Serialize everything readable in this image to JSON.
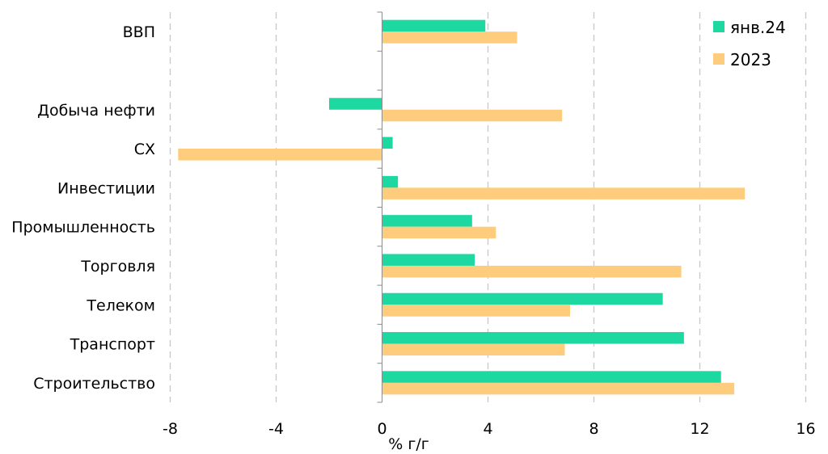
{
  "chart_data": {
    "type": "bar",
    "orientation": "horizontal",
    "categories": [
      "ВВП",
      "",
      "Добыча нефти",
      "СХ",
      "Инвестиции",
      "Промышленность",
      "Торговля",
      "Телеком",
      "Транспорт",
      "Строительство"
    ],
    "series": [
      {
        "name": "янв.24",
        "color": "#1dd8a0",
        "values": [
          3.9,
          null,
          -2.0,
          0.4,
          0.6,
          3.4,
          3.5,
          10.6,
          11.4,
          12.8
        ]
      },
      {
        "name": "2023",
        "color": "#fdcc7c",
        "values": [
          5.1,
          null,
          6.8,
          -7.7,
          13.7,
          4.3,
          11.3,
          7.1,
          6.9,
          13.3
        ]
      }
    ],
    "xlabel": "% г/г",
    "ylabel": "",
    "xlim": [
      -8,
      16
    ],
    "xticks": [
      -8,
      -4,
      0,
      4,
      8,
      12,
      16
    ],
    "grid": true,
    "legend_position": "top-right"
  }
}
